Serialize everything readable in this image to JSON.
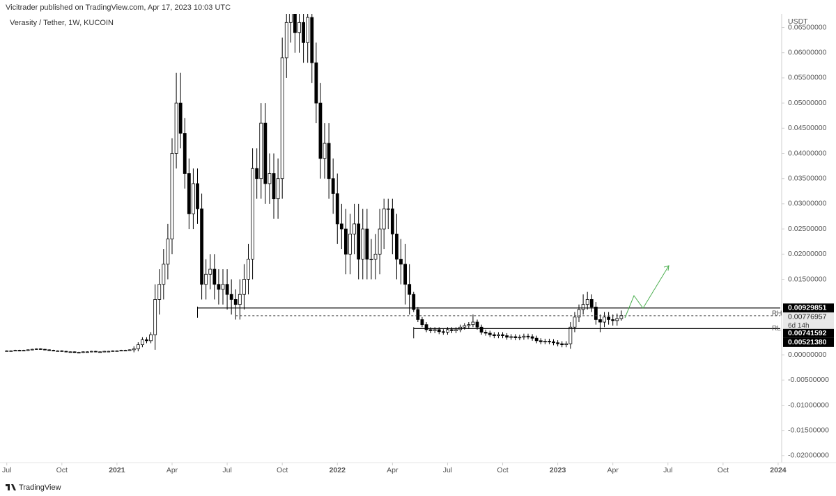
{
  "header": {
    "published": "Vicitrader published on TradingView.com, Apr 17, 2023 10:03 UTC",
    "footer": "TradingView"
  },
  "chart_data": {
    "type": "candlestick",
    "title": "Verasity / Tether, 1W, KUCOIN",
    "y_axis_label": "USDT",
    "up_color": "#ffffff",
    "down_color": "#000000",
    "outline_color": "#000000",
    "xlim": [
      -1.6,
      182.5
    ],
    "xticks": [
      {
        "value": 0,
        "label": "Jul"
      },
      {
        "value": 13,
        "label": "Oct"
      },
      {
        "value": 26,
        "label": "2021"
      },
      {
        "value": 39,
        "label": "Apr"
      },
      {
        "value": 52,
        "label": "Jul"
      },
      {
        "value": 65,
        "label": "Oct"
      },
      {
        "value": 78,
        "label": "2022"
      },
      {
        "value": 91,
        "label": "Apr"
      },
      {
        "value": 104,
        "label": "Jul"
      },
      {
        "value": 117,
        "label": "Oct"
      },
      {
        "value": 130,
        "label": "2023"
      },
      {
        "value": 143,
        "label": "Apr"
      },
      {
        "value": 156,
        "label": "Jul"
      },
      {
        "value": 169,
        "label": "Oct"
      },
      {
        "value": 182,
        "label": "2024"
      }
    ],
    "ylim": [
      -0.0214,
      0.0677
    ],
    "yticks": [
      {
        "value": 0.065,
        "label": "0.06500000"
      },
      {
        "value": 0.06,
        "label": "0.06000000"
      },
      {
        "value": 0.055,
        "label": "0.05500000"
      },
      {
        "value": 0.05,
        "label": "0.05000000"
      },
      {
        "value": 0.045,
        "label": "0.04500000"
      },
      {
        "value": 0.04,
        "label": "0.04000000"
      },
      {
        "value": 0.035,
        "label": "0.03500000"
      },
      {
        "value": 0.03,
        "label": "0.03000000"
      },
      {
        "value": 0.025,
        "label": "0.02500000"
      },
      {
        "value": 0.02,
        "label": "0.02000000"
      },
      {
        "value": 0.015,
        "label": "0.01500000"
      },
      {
        "value": 0,
        "label": "0.00000000"
      },
      {
        "value": -0.005,
        "label": "-0.00500000"
      },
      {
        "value": -0.01,
        "label": "-0.01000000"
      },
      {
        "value": -0.015,
        "label": "-0.01500000"
      },
      {
        "value": -0.02,
        "label": "-0.02000000"
      }
    ],
    "levels": [
      {
        "label": "RH",
        "value": 0.00929851,
        "value_label": "0.00929851",
        "start": 45
      },
      {
        "label": "RL",
        "value": 0.0052138,
        "value_label": "0.00521380",
        "start": 96
      }
    ],
    "current_price": {
      "value": 0.00776957,
      "value_label": "0.00776957",
      "countdown": "6d 14h",
      "start": 54
    },
    "price_tag": {
      "value": 0.00741592,
      "value_label": "0.00741592"
    },
    "open": [
      0.0008,
      0.0008,
      0.0008,
      0.0009,
      0.0008,
      0.0009,
      0.001,
      0.0011,
      0.0012,
      0.0011,
      0.001,
      0.0009,
      0.0008,
      0.0008,
      0.0007,
      0.0006,
      0.0006,
      0.0005,
      0.0005,
      0.0006,
      0.0006,
      0.0007,
      0.0006,
      0.0006,
      0.0007,
      0.0007,
      0.0008,
      0.0008,
      0.0009,
      0.0009,
      0.001,
      0.0012,
      0.002,
      0.003,
      0.0028,
      0.004,
      0.011,
      0.014,
      0.018,
      0.023,
      0.04,
      0.05,
      0.044,
      0.036,
      0.028,
      0.034,
      0.029,
      0.014,
      0.016,
      0.017,
      0.014,
      0.013,
      0.014,
      0.012,
      0.011,
      0.01,
      0.012,
      0.015,
      0.019,
      0.037,
      0.035,
      0.046,
      0.034,
      0.036,
      0.031,
      0.035,
      0.059,
      0.066,
      0.068,
      0.064,
      0.066,
      0.062,
      0.067,
      0.058,
      0.05,
      0.039,
      0.042,
      0.035,
      0.032,
      0.026,
      0.025,
      0.02,
      0.024,
      0.026,
      0.019,
      0.025,
      0.019,
      0.019,
      0.02,
      0.025,
      0.029,
      0.029,
      0.024,
      0.019,
      0.018,
      0.014,
      0.012,
      0.009,
      0.007,
      0.006,
      0.005,
      0.0048,
      0.005,
      0.0046,
      0.0045,
      0.005,
      0.0048,
      0.005,
      0.0055,
      0.0058,
      0.006,
      0.0065,
      0.0055,
      0.0045,
      0.0043,
      0.004,
      0.0038,
      0.004,
      0.0038,
      0.0035,
      0.0036,
      0.0034,
      0.0035,
      0.0037,
      0.0036,
      0.0033,
      0.0028,
      0.0026,
      0.0027,
      0.0026,
      0.0024,
      0.0022,
      0.002,
      0.0022,
      0.0055,
      0.0075,
      0.009,
      0.01,
      0.011,
      0.0095,
      0.007,
      0.0065,
      0.0075,
      0.007,
      0.0068,
      0.0072
    ],
    "high": [
      0.0009,
      0.0009,
      0.001,
      0.001,
      0.001,
      0.0011,
      0.0012,
      0.0013,
      0.0013,
      0.0012,
      0.0011,
      0.001,
      0.0009,
      0.0009,
      0.0008,
      0.0007,
      0.0007,
      0.0006,
      0.0007,
      0.0007,
      0.0008,
      0.0008,
      0.0007,
      0.0008,
      0.0008,
      0.0009,
      0.0009,
      0.001,
      0.001,
      0.0011,
      0.0017,
      0.0025,
      0.0035,
      0.0035,
      0.0045,
      0.014,
      0.017,
      0.021,
      0.026,
      0.043,
      0.056,
      0.056,
      0.047,
      0.039,
      0.037,
      0.037,
      0.032,
      0.019,
      0.02,
      0.02,
      0.017,
      0.017,
      0.017,
      0.015,
      0.013,
      0.015,
      0.018,
      0.022,
      0.041,
      0.041,
      0.05,
      0.05,
      0.04,
      0.04,
      0.039,
      0.063,
      0.07,
      0.072,
      0.072,
      0.07,
      0.07,
      0.071,
      0.071,
      0.062,
      0.054,
      0.046,
      0.046,
      0.039,
      0.036,
      0.03,
      0.029,
      0.028,
      0.03,
      0.03,
      0.029,
      0.029,
      0.023,
      0.024,
      0.029,
      0.031,
      0.031,
      0.031,
      0.028,
      0.023,
      0.022,
      0.018,
      0.0125,
      0.0095,
      0.0075,
      0.0065,
      0.0055,
      0.0055,
      0.0055,
      0.0051,
      0.0055,
      0.0055,
      0.0055,
      0.006,
      0.0063,
      0.0065,
      0.008,
      0.007,
      0.006,
      0.005,
      0.0048,
      0.0045,
      0.0045,
      0.0045,
      0.0043,
      0.0041,
      0.0041,
      0.004,
      0.0042,
      0.0042,
      0.0041,
      0.0038,
      0.0033,
      0.0032,
      0.0032,
      0.0031,
      0.0029,
      0.0027,
      0.0027,
      0.0065,
      0.0085,
      0.01,
      0.012,
      0.0125,
      0.012,
      0.0105,
      0.008,
      0.0085,
      0.0085,
      0.008,
      0.0082,
      0.0088
    ],
    "low": [
      0.0007,
      0.0007,
      0.0007,
      0.0007,
      0.0007,
      0.0008,
      0.0009,
      0.001,
      0.001,
      0.0009,
      0.0008,
      0.0007,
      0.0007,
      0.0006,
      0.0005,
      0.0005,
      0.0004,
      0.0004,
      0.0004,
      0.0005,
      0.0005,
      0.0005,
      0.0005,
      0.0005,
      0.0006,
      0.0006,
      0.0007,
      0.0007,
      0.0008,
      0.0008,
      0.0005,
      0.0007,
      0.0015,
      0.0023,
      0.0023,
      0.001,
      0.008,
      0.011,
      0.015,
      0.02,
      0.037,
      0.041,
      0.033,
      0.025,
      0.025,
      0.026,
      0.011,
      0.011,
      0.013,
      0.011,
      0.01,
      0.01,
      0.009,
      0.008,
      0.007,
      0.007,
      0.009,
      0.012,
      0.015,
      0.031,
      0.031,
      0.03,
      0.03,
      0.027,
      0.027,
      0.031,
      0.055,
      0.062,
      0.06,
      0.06,
      0.058,
      0.058,
      0.054,
      0.046,
      0.035,
      0.035,
      0.031,
      0.028,
      0.022,
      0.021,
      0.016,
      0.016,
      0.02,
      0.015,
      0.015,
      0.015,
      0.015,
      0.015,
      0.016,
      0.021,
      0.025,
      0.02,
      0.015,
      0.014,
      0.01,
      0.008,
      0.0085,
      0.0065,
      0.0055,
      0.0045,
      0.0043,
      0.0043,
      0.0041,
      0.004,
      0.004,
      0.0043,
      0.0043,
      0.0045,
      0.005,
      0.0053,
      0.0055,
      0.005,
      0.004,
      0.0038,
      0.0035,
      0.0033,
      0.0033,
      0.0033,
      0.003,
      0.003,
      0.0029,
      0.0029,
      0.003,
      0.0031,
      0.0028,
      0.0023,
      0.0021,
      0.0021,
      0.0021,
      0.0019,
      0.0017,
      0.0015,
      0.0015,
      0.0012,
      0.0045,
      0.0065,
      0.008,
      0.009,
      0.0085,
      0.006,
      0.0045,
      0.0055,
      0.006,
      0.0058,
      0.0058,
      0.0068
    ],
    "close": [
      0.0008,
      0.0008,
      0.0009,
      0.0008,
      0.0009,
      0.001,
      0.0011,
      0.0012,
      0.0011,
      0.001,
      0.0009,
      0.0008,
      0.0008,
      0.0007,
      0.0006,
      0.0006,
      0.0005,
      0.0005,
      0.0006,
      0.0006,
      0.0007,
      0.0006,
      0.0006,
      0.0007,
      0.0007,
      0.0008,
      0.0008,
      0.0009,
      0.0009,
      0.001,
      0.0012,
      0.002,
      0.003,
      0.0028,
      0.004,
      0.011,
      0.014,
      0.018,
      0.023,
      0.04,
      0.05,
      0.044,
      0.036,
      0.028,
      0.034,
      0.029,
      0.014,
      0.016,
      0.017,
      0.014,
      0.013,
      0.014,
      0.012,
      0.011,
      0.01,
      0.012,
      0.015,
      0.019,
      0.037,
      0.035,
      0.046,
      0.034,
      0.036,
      0.031,
      0.035,
      0.059,
      0.066,
      0.068,
      0.064,
      0.066,
      0.062,
      0.067,
      0.058,
      0.05,
      0.039,
      0.042,
      0.035,
      0.032,
      0.026,
      0.025,
      0.02,
      0.024,
      0.026,
      0.019,
      0.025,
      0.019,
      0.019,
      0.02,
      0.025,
      0.029,
      0.029,
      0.024,
      0.019,
      0.018,
      0.014,
      0.012,
      0.009,
      0.007,
      0.006,
      0.005,
      0.0048,
      0.005,
      0.0046,
      0.0045,
      0.005,
      0.0048,
      0.005,
      0.0055,
      0.0058,
      0.006,
      0.0065,
      0.0055,
      0.0045,
      0.0043,
      0.004,
      0.0038,
      0.004,
      0.0038,
      0.0035,
      0.0036,
      0.0034,
      0.0035,
      0.0037,
      0.0036,
      0.0033,
      0.0028,
      0.0026,
      0.0027,
      0.0026,
      0.0024,
      0.0022,
      0.002,
      0.0022,
      0.0055,
      0.0075,
      0.009,
      0.01,
      0.011,
      0.0095,
      0.007,
      0.0065,
      0.0075,
      0.007,
      0.0068,
      0.0072,
      0.0078
    ]
  }
}
